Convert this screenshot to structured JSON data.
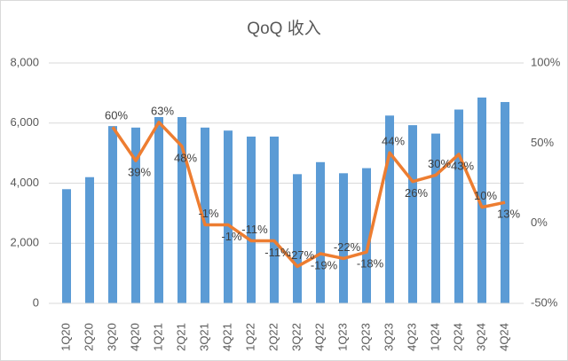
{
  "chart_data": {
    "type": "bar-line",
    "title": "QoQ 收入",
    "categories": [
      "1Q20",
      "2Q20",
      "3Q20",
      "4Q20",
      "1Q21",
      "2Q21",
      "3Q21",
      "4Q21",
      "1Q22",
      "2Q22",
      "3Q22",
      "4Q22",
      "1Q23",
      "2Q23",
      "3Q23",
      "4Q23",
      "1Q24",
      "2Q24",
      "3Q24",
      "4Q24"
    ],
    "series": [
      {
        "type": "bar",
        "color": "#5b9bd5",
        "values": [
          3800,
          4200,
          5900,
          5850,
          6200,
          6200,
          5850,
          5750,
          5550,
          5550,
          4300,
          4700,
          4330,
          4500,
          6250,
          5930,
          5650,
          6450,
          6850,
          6700
        ]
      },
      {
        "type": "line",
        "axis": "y2",
        "color": "#ed7d31",
        "values": [
          null,
          null,
          60,
          39,
          63,
          48,
          -1,
          -1,
          -11,
          -11,
          -27,
          -19,
          -22,
          -18,
          44,
          26,
          30,
          43,
          10,
          13
        ],
        "value_labels": [
          null,
          null,
          "60%",
          "39%",
          "63%",
          "48%",
          "-1%",
          "-1%",
          "-11%",
          "-11%",
          "-27%",
          "-19%",
          "-22%",
          "-18%",
          "44%",
          "26%",
          "30%",
          "43%",
          "10%",
          "13%"
        ]
      }
    ],
    "ylim": [
      0,
      8000
    ],
    "yticks": [
      0,
      {
        "value": 2000,
        "label": "2,000"
      },
      {
        "value": 4000,
        "label": "4,000"
      },
      {
        "value": 6000,
        "label": "6,000"
      },
      {
        "value": 8000,
        "label": "8,000"
      }
    ],
    "y2lim": [
      -50,
      100
    ],
    "y2ticks": [
      {
        "value": -50,
        "label": "-50%"
      },
      {
        "value": 0,
        "label": "0%"
      },
      {
        "value": 50,
        "label": "50%"
      },
      {
        "value": 100,
        "label": "100%"
      }
    ]
  }
}
